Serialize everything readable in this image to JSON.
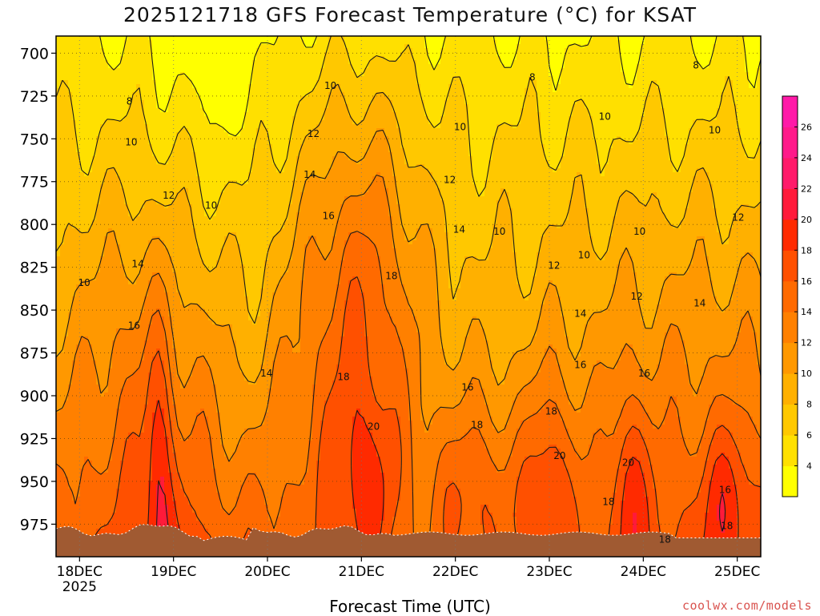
{
  "title": "2025121718 GFS Forecast Temperature (°C) for KSAT",
  "xlabel": "Forecast Time (UTC)",
  "credit": "coolwx.com/models",
  "chart_data": {
    "type": "heatmap",
    "title": "2025121718 GFS Forecast Temperature (°C) for KSAT",
    "xlabel": "Forecast Time (UTC)",
    "ylabel": "",
    "x_ticks": [
      {
        "label": "18DEC",
        "sublabel": "2025",
        "day": 0
      },
      {
        "label": "19DEC",
        "day": 1
      },
      {
        "label": "20DEC",
        "day": 2
      },
      {
        "label": "21DEC",
        "day": 3
      },
      {
        "label": "22DEC",
        "day": 4
      },
      {
        "label": "23DEC",
        "day": 5
      },
      {
        "label": "24DEC",
        "day": 6
      },
      {
        "label": "25DEC",
        "day": 7
      }
    ],
    "xlim_days": [
      -0.25,
      7.25
    ],
    "y_ticks": [
      700,
      725,
      750,
      775,
      800,
      825,
      850,
      875,
      900,
      925,
      950,
      975
    ],
    "ylim": [
      690,
      994
    ],
    "grid": true,
    "colorbar": {
      "ticks": [
        4,
        6,
        8,
        10,
        12,
        14,
        16,
        18,
        20,
        22,
        24,
        26
      ],
      "min": 2,
      "max": 28,
      "colors": [
        "#ffff00",
        "#ffe000",
        "#ffc800",
        "#ffb000",
        "#ff9800",
        "#ff8000",
        "#ff6a00",
        "#ff5000",
        "#ff2a00",
        "#ff1a3a",
        "#ff1a6a",
        "#ff1a8a",
        "#ff1aa8"
      ]
    },
    "contour_labels": [
      {
        "value": "8",
        "day": 0.53,
        "p": 728
      },
      {
        "value": "10",
        "day": 0.55,
        "p": 752
      },
      {
        "value": "10",
        "day": 0.05,
        "p": 834
      },
      {
        "value": "12",
        "day": 0.95,
        "p": 783
      },
      {
        "value": "10",
        "day": 1.4,
        "p": 789
      },
      {
        "value": "14",
        "day": 0.62,
        "p": 823
      },
      {
        "value": "16",
        "day": 0.58,
        "p": 859
      },
      {
        "value": "10",
        "day": 2.67,
        "p": 719
      },
      {
        "value": "12",
        "day": 2.49,
        "p": 747
      },
      {
        "value": "14",
        "day": 2.45,
        "p": 771
      },
      {
        "value": "16",
        "day": 2.65,
        "p": 795
      },
      {
        "value": "18",
        "day": 3.32,
        "p": 830
      },
      {
        "value": "14",
        "day": 1.99,
        "p": 887
      },
      {
        "value": "18",
        "day": 2.81,
        "p": 889
      },
      {
        "value": "20",
        "day": 3.13,
        "p": 918
      },
      {
        "value": "10",
        "day": 4.05,
        "p": 743
      },
      {
        "value": "12",
        "day": 3.94,
        "p": 774
      },
      {
        "value": "14",
        "day": 4.04,
        "p": 803
      },
      {
        "value": "10",
        "day": 4.47,
        "p": 804
      },
      {
        "value": "8",
        "day": 4.82,
        "p": 714
      },
      {
        "value": "10",
        "day": 5.59,
        "p": 737
      },
      {
        "value": "10",
        "day": 6.76,
        "p": 745
      },
      {
        "value": "8",
        "day": 6.56,
        "p": 707
      },
      {
        "value": "10",
        "day": 5.37,
        "p": 818
      },
      {
        "value": "10",
        "day": 5.96,
        "p": 804
      },
      {
        "value": "12",
        "day": 5.05,
        "p": 824
      },
      {
        "value": "12",
        "day": 5.93,
        "p": 842
      },
      {
        "value": "12",
        "day": 7.01,
        "p": 796
      },
      {
        "value": "14",
        "day": 6.6,
        "p": 846
      },
      {
        "value": "14",
        "day": 5.33,
        "p": 852
      },
      {
        "value": "16",
        "day": 4.13,
        "p": 895
      },
      {
        "value": "16",
        "day": 5.33,
        "p": 882
      },
      {
        "value": "16",
        "day": 6.01,
        "p": 887
      },
      {
        "value": "18",
        "day": 4.23,
        "p": 917
      },
      {
        "value": "18",
        "day": 5.02,
        "p": 909
      },
      {
        "value": "20",
        "day": 5.11,
        "p": 935
      },
      {
        "value": "20",
        "day": 5.84,
        "p": 939
      },
      {
        "value": "18",
        "day": 5.63,
        "p": 962
      },
      {
        "value": "18",
        "day": 6.23,
        "p": 984
      },
      {
        "value": "16",
        "day": 6.87,
        "p": 955
      },
      {
        "value": "18",
        "day": 6.89,
        "p": 976
      }
    ]
  }
}
